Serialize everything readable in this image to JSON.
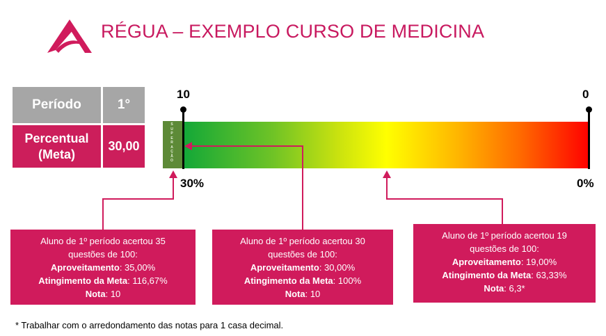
{
  "header": {
    "title": "RÉGUA – EXEMPLO CURSO DE MEDICINA"
  },
  "table": {
    "periodo_label": "Período",
    "periodo_value": "1°",
    "percentual_label_line1": "Percentual",
    "percentual_label_line2": "(Meta)",
    "percentual_value": "30,00"
  },
  "ruler": {
    "superacao_text": "SUPERAÇÃO",
    "top_left_label": "10",
    "top_right_label": "0",
    "bottom_left_label": "30%",
    "bottom_right_label": "0%"
  },
  "boxes": [
    {
      "line1": "Aluno de 1º período acertou 35",
      "line2": "questões de 100:",
      "aproveitamento_label": "Aproveitamento",
      "aproveitamento_value": ": 35,00%",
      "atingimento_label": "Atingimento da Meta",
      "atingimento_value": ": 116,67%",
      "nota_label": "Nota",
      "nota_value": ": 10"
    },
    {
      "line1": "Aluno de 1º período acertou 30",
      "line2": "questões de 100:",
      "aproveitamento_label": "Aproveitamento",
      "aproveitamento_value": ": 30,00%",
      "atingimento_label": "Atingimento da Meta",
      "atingimento_value": ": 100%",
      "nota_label": "Nota",
      "nota_value": ": 10"
    },
    {
      "line1": "Aluno de 1º período acertou 19",
      "line2": "questões de 100:",
      "aproveitamento_label": "Aproveitamento",
      "aproveitamento_value": ": 19,00%",
      "atingimento_label": "Atingimento da Meta",
      "atingimento_value": ": 63,33%",
      "nota_label": "Nota",
      "nota_value": ": 6,3*"
    }
  ],
  "footnote": "* Trabalhar com o arredondamento das notas para 1 casa decimal.",
  "colors": {
    "accent": "#cc1e5b",
    "gray": "#a6a6a6",
    "superacao": "#5d8a37"
  }
}
